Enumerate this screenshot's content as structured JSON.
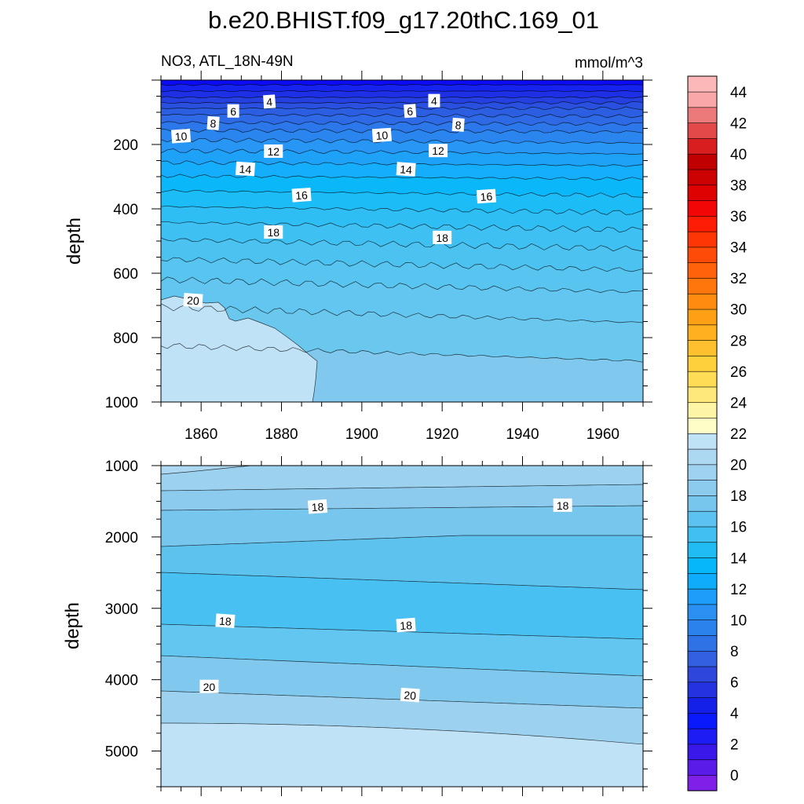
{
  "chart_data": {
    "type": "heatmap",
    "title": "b.e20.BHIST.f09_g17.20thC.169_01",
    "subtitle_left": "NO3, ATL_18N-49N",
    "subtitle_right": "mmol/m^3",
    "x_ticks": [
      "1860",
      "1880",
      "1900",
      "1920",
      "1940",
      "1960"
    ],
    "x_range": [
      1850,
      1970
    ],
    "panels": [
      {
        "name": "upper",
        "ylabel": "depth",
        "ylim": [
          0,
          1000
        ],
        "y_ticks": [
          "200",
          "400",
          "600",
          "800",
          "1000"
        ],
        "contour_labels": [
          {
            "text": "4",
            "x": 1877,
            "y": 68
          },
          {
            "text": "6",
            "x": 1868,
            "y": 97
          },
          {
            "text": "8",
            "x": 1863,
            "y": 135
          },
          {
            "text": "10",
            "x": 1855,
            "y": 175
          },
          {
            "text": "12",
            "x": 1878,
            "y": 222
          },
          {
            "text": "14",
            "x": 1871,
            "y": 277
          },
          {
            "text": "16",
            "x": 1885,
            "y": 358
          },
          {
            "text": "18",
            "x": 1878,
            "y": 473
          },
          {
            "text": "20",
            "x": 1858,
            "y": 685
          },
          {
            "text": "6",
            "x": 1912,
            "y": 97
          },
          {
            "text": "4",
            "x": 1918,
            "y": 65
          },
          {
            "text": "8",
            "x": 1924,
            "y": 140
          },
          {
            "text": "10",
            "x": 1905,
            "y": 172
          },
          {
            "text": "12",
            "x": 1919,
            "y": 220
          },
          {
            "text": "14",
            "x": 1911,
            "y": 278
          },
          {
            "text": "16",
            "x": 1931,
            "y": 362
          },
          {
            "text": "18",
            "x": 1920,
            "y": 490
          }
        ]
      },
      {
        "name": "lower",
        "ylabel": "depth",
        "ylim": [
          1000,
          5500
        ],
        "y_ticks": [
          "1000",
          "2000",
          "3000",
          "4000",
          "5000"
        ],
        "contour_labels": [
          {
            "text": "18",
            "x": 1889,
            "y": 1580
          },
          {
            "text": "18",
            "x": 1950,
            "y": 1560
          },
          {
            "text": "18",
            "x": 1866,
            "y": 3180
          },
          {
            "text": "18",
            "x": 1911,
            "y": 3240
          },
          {
            "text": "20",
            "x": 1862,
            "y": 4100
          },
          {
            "text": "20",
            "x": 1912,
            "y": 4220
          }
        ]
      }
    ],
    "colorbar": {
      "tick_labels": [
        "0",
        "2",
        "4",
        "6",
        "8",
        "10",
        "12",
        "14",
        "16",
        "18",
        "20",
        "22",
        "24",
        "26",
        "28",
        "30",
        "32",
        "34",
        "36",
        "38",
        "40",
        "42",
        "44"
      ],
      "colors": [
        "#7f1fe8",
        "#5a1ae8",
        "#3a18ea",
        "#1e1cf5",
        "#0a18fc",
        "#1420e8",
        "#2432e0",
        "#2e46dc",
        "#3260e0",
        "#2e72e6",
        "#2c82ec",
        "#2a90f2",
        "#1e9ef8",
        "#10acfc",
        "#06b8fa",
        "#22bcf4",
        "#40c0f2",
        "#5cc2f0",
        "#76c6ee",
        "#8ccaee",
        "#9ed2f0",
        "#acd8f2",
        "#bfe2f6",
        "#fdfdc8",
        "#fef4a6",
        "#fee87a",
        "#fedc56",
        "#fed03c",
        "#fec02e",
        "#feb020",
        "#fea016",
        "#fe8c10",
        "#fe760c",
        "#fe620a",
        "#fe4c08",
        "#fe3606",
        "#fe1c04",
        "#f20606",
        "#de0202",
        "#cc0202",
        "#c00000",
        "#d81e1e",
        "#e24a4a",
        "#ec7a7a",
        "#f8a8a8",
        "#fcb8b8"
      ]
    }
  }
}
